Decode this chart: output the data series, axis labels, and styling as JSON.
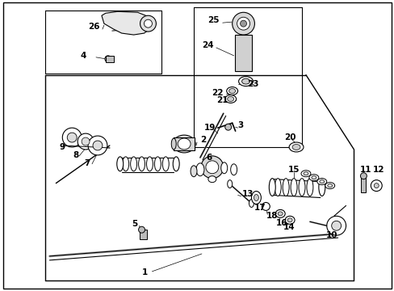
{
  "bg": "#ffffff",
  "fig_w": 4.89,
  "fig_h": 3.6,
  "dpi": 100,
  "lw_main": 0.9,
  "lw_thin": 0.6,
  "font_size": 7.5,
  "font_size_small": 6.5
}
